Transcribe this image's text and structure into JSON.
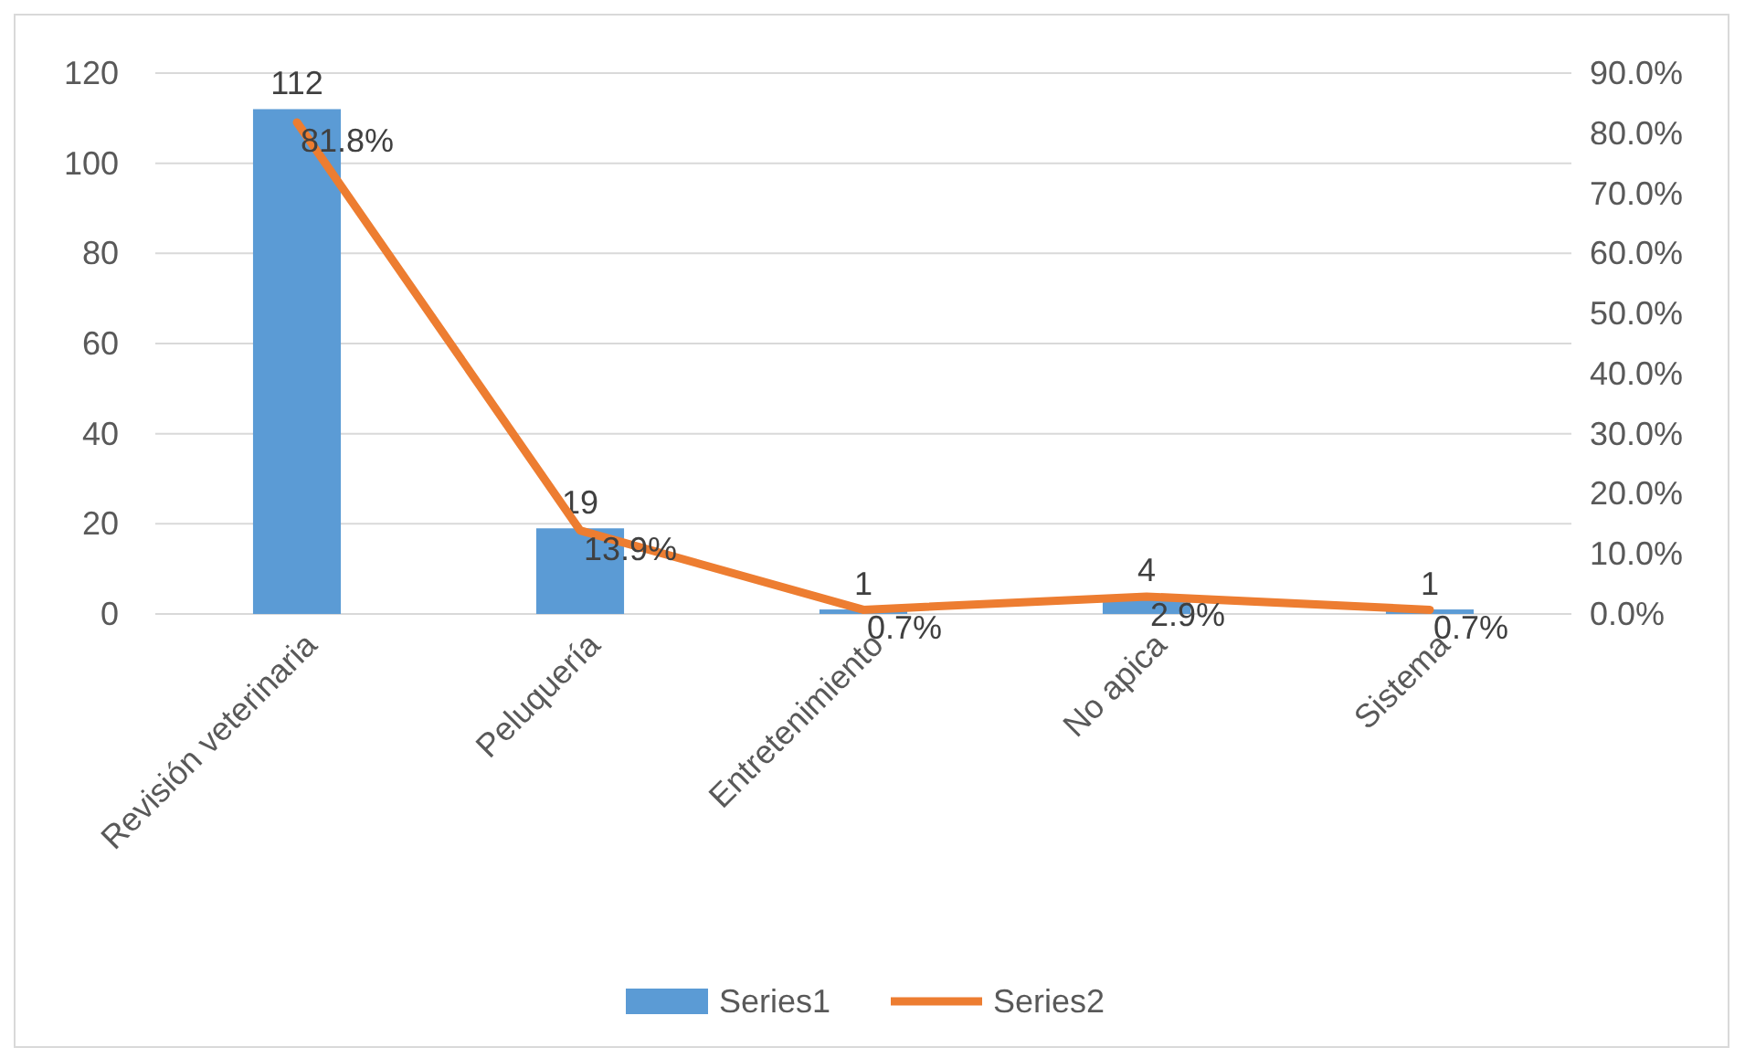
{
  "chart_data": {
    "type": "bar",
    "categories": [
      "Revisión veterinaria",
      "Peluquería",
      "Entretenimiento",
      "No apica",
      "Sistema"
    ],
    "series": [
      {
        "name": "Series1",
        "color": "#5b9bd5",
        "values": [
          112,
          19,
          1,
          4,
          1
        ],
        "value_labels": [
          "112",
          "19",
          "1",
          "4",
          "1"
        ]
      },
      {
        "name": "Series2",
        "type": "line",
        "axis": "y2",
        "color": "#ed7d31",
        "values": [
          81.8,
          13.9,
          0.7,
          2.9,
          0.7
        ],
        "value_labels": [
          "81.8%",
          "13.9%",
          "0.7%",
          "2.9%",
          "0.7%"
        ]
      }
    ],
    "ylim": [
      0,
      120
    ],
    "yticks": [
      0,
      20,
      40,
      60,
      80,
      100,
      120
    ],
    "y2lim": [
      0,
      90
    ],
    "y2ticks": [
      {
        "value": 0,
        "label": "0.0%"
      },
      {
        "value": 10,
        "label": "10.0%"
      },
      {
        "value": 20,
        "label": "20.0%"
      },
      {
        "value": 30,
        "label": "30.0%"
      },
      {
        "value": 40,
        "label": "40.0%"
      },
      {
        "value": 50,
        "label": "50.0%"
      },
      {
        "value": 60,
        "label": "60.0%"
      },
      {
        "value": 70,
        "label": "70.0%"
      },
      {
        "value": 80,
        "label": "80.0%"
      },
      {
        "value": 90,
        "label": "90.0%"
      }
    ],
    "grid": "y",
    "legend": "bottom"
  }
}
